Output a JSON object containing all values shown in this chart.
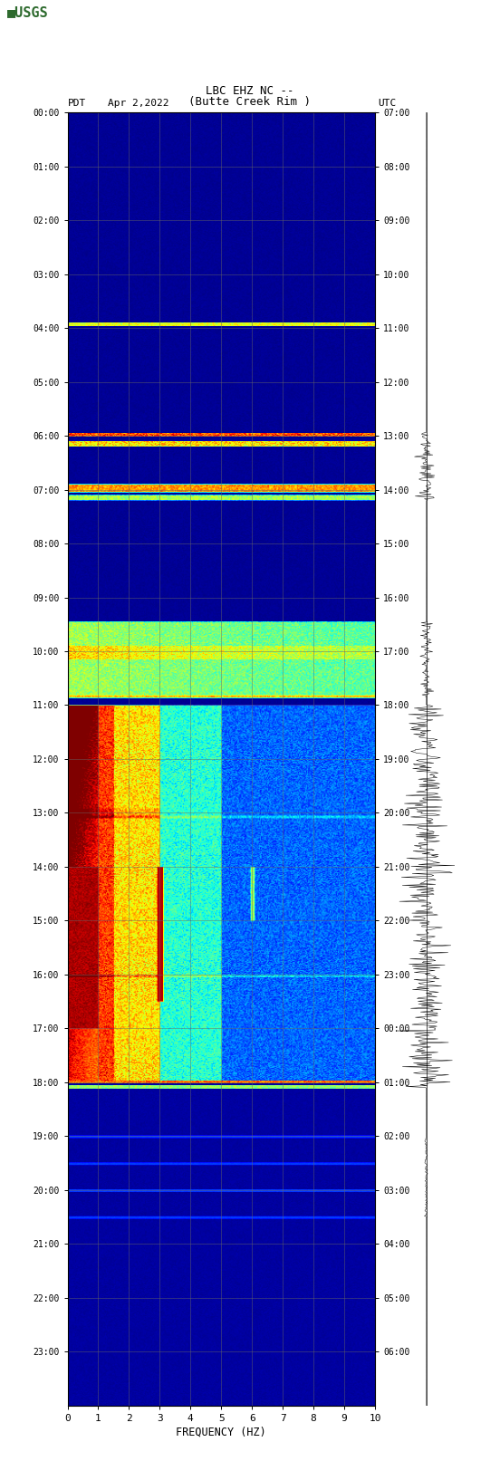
{
  "title_line1": "LBC EHZ NC --",
  "title_line2": "(Butte Creek Rim )",
  "date_label": "Apr 2,2022",
  "pdt_label": "PDT",
  "utc_label": "UTC",
  "xlabel": "FREQUENCY (HZ)",
  "freq_min": 0,
  "freq_max": 10,
  "pdt_ticks": [
    "00:00",
    "01:00",
    "02:00",
    "03:00",
    "04:00",
    "05:00",
    "06:00",
    "07:00",
    "08:00",
    "09:00",
    "10:00",
    "11:00",
    "12:00",
    "13:00",
    "14:00",
    "15:00",
    "16:00",
    "17:00",
    "18:00",
    "19:00",
    "20:00",
    "21:00",
    "22:00",
    "23:00"
  ],
  "utc_ticks": [
    "07:00",
    "08:00",
    "09:00",
    "10:00",
    "11:00",
    "12:00",
    "13:00",
    "14:00",
    "15:00",
    "16:00",
    "17:00",
    "18:00",
    "19:00",
    "20:00",
    "21:00",
    "22:00",
    "23:00",
    "00:00",
    "01:00",
    "02:00",
    "03:00",
    "04:00",
    "05:00",
    "06:00"
  ],
  "freq_ticks": [
    0,
    1,
    2,
    3,
    4,
    5,
    6,
    7,
    8,
    9,
    10
  ],
  "grid_color": "#808080",
  "fig_bg": "#ffffff"
}
